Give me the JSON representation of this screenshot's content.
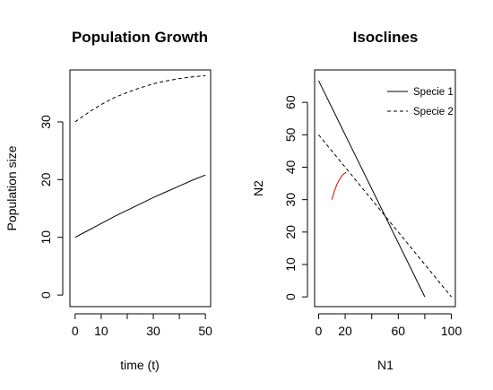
{
  "chart_data": [
    {
      "type": "line",
      "title": "Population Growth",
      "xlabel": "time (t)",
      "ylabel": "Population size",
      "xlim": [
        -2,
        52
      ],
      "ylim": [
        -2,
        39
      ],
      "xticks": [
        0,
        10,
        20,
        30,
        40,
        50
      ],
      "xtick_labels": [
        "0",
        "10",
        "",
        "30",
        "",
        "50"
      ],
      "yticks": [
        0,
        10,
        20,
        30
      ],
      "ytick_labels": [
        "0",
        "10",
        "20",
        "30"
      ],
      "series": [
        {
          "style": "solid",
          "color": "#000000",
          "x": [
            0,
            5,
            10,
            15,
            20,
            25,
            30,
            35,
            40,
            45,
            50
          ],
          "y": [
            10,
            11.2,
            12.4,
            13.6,
            14.7,
            15.8,
            16.9,
            17.9,
            18.9,
            19.9,
            20.8
          ]
        },
        {
          "style": "dashed",
          "color": "#000000",
          "x": [
            0,
            5,
            10,
            15,
            20,
            25,
            30,
            35,
            40,
            45,
            50
          ],
          "y": [
            30,
            31.6,
            33.0,
            34.2,
            35.1,
            35.9,
            36.6,
            37.1,
            37.5,
            37.8,
            38.0
          ]
        }
      ]
    },
    {
      "type": "line",
      "title": "Isoclines",
      "xlabel": "N1",
      "ylabel": "N2",
      "xlim": [
        -3,
        103
      ],
      "ylim": [
        -3,
        70
      ],
      "xticks": [
        0,
        20,
        40,
        60,
        80,
        100
      ],
      "xtick_labels": [
        "0",
        "20",
        "",
        "60",
        "",
        "100"
      ],
      "yticks": [
        0,
        10,
        20,
        30,
        40,
        50,
        60
      ],
      "ytick_labels": [
        "0",
        "10",
        "20",
        "30",
        "40",
        "50",
        "60"
      ],
      "legend": {
        "position": "top-right",
        "entries": [
          {
            "label": "Specie 1",
            "style": "solid"
          },
          {
            "label": "Specie 2",
            "style": "dashed"
          }
        ]
      },
      "series": [
        {
          "name": "Specie 1",
          "style": "solid",
          "color": "#000000",
          "x": [
            0,
            80
          ],
          "y": [
            66.7,
            0
          ]
        },
        {
          "name": "Specie 2",
          "style": "dashed",
          "color": "#000000",
          "x": [
            0,
            100
          ],
          "y": [
            50,
            0
          ]
        },
        {
          "style": "solid",
          "color": "#cc0000",
          "x": [
            10,
            12,
            14,
            16,
            18,
            20.8
          ],
          "y": [
            30,
            32.8,
            34.9,
            36.4,
            37.6,
            38.5
          ]
        }
      ]
    }
  ]
}
